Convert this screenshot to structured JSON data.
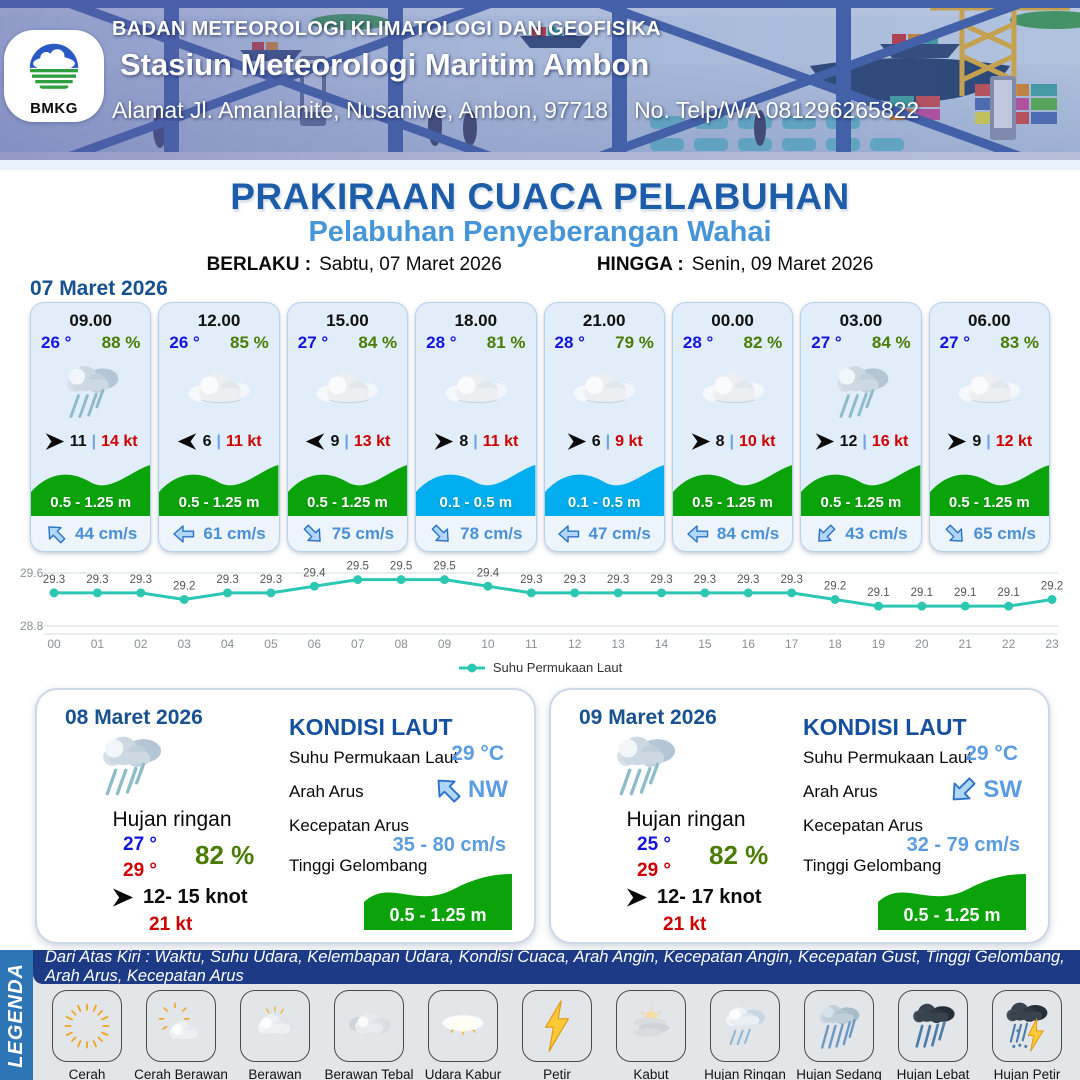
{
  "header": {
    "logo_text": "BMKG",
    "agency": "BADAN METEOROLOGI KLIMATOLOGI DAN GEOFISIKA",
    "station": "Stasiun Meteorologi Maritim Ambon",
    "address": "Alamat Jl. Amanlanite, Nusaniwe, Ambon, 97718",
    "phone": "No. Telp/WA  081296265822"
  },
  "title": "PRAKIRAAN CUACA PELABUHAN",
  "subtitle": "Pelabuhan Penyeberangan Wahai",
  "validity": {
    "berlaku_label": "BERLAKU :",
    "berlaku_value": "Sabtu, 07 Maret 2026",
    "hingga_label": "HINGGA :",
    "hingga_value": "Senin, 09 Maret 2026"
  },
  "forecast_date": "07 Maret 2026",
  "labels": {
    "sep": "|"
  },
  "hourly": [
    {
      "time": "09.00",
      "temp": "26 °",
      "humidity": "88 %",
      "icon": "hujan-ringan",
      "wind_dir": "E",
      "wind": "11",
      "gust": "14 kt",
      "wave": "0.5 - 1.25 m",
      "wave_color": "green",
      "current_dir": "NW",
      "current": "44 cm/s"
    },
    {
      "time": "12.00",
      "temp": "26 °",
      "humidity": "85 %",
      "icon": "berawan",
      "wind_dir": "W",
      "wind": "6",
      "gust": "11 kt",
      "wave": "0.5 - 1.25 m",
      "wave_color": "green",
      "current_dir": "W",
      "current": "61 cm/s"
    },
    {
      "time": "15.00",
      "temp": "27 °",
      "humidity": "84 %",
      "icon": "berawan",
      "wind_dir": "W",
      "wind": "9",
      "gust": "13 kt",
      "wave": "0.5 - 1.25 m",
      "wave_color": "green",
      "current_dir": "SE",
      "current": "75 cm/s"
    },
    {
      "time": "18.00",
      "temp": "28 °",
      "humidity": "81 %",
      "icon": "berawan",
      "wind_dir": "E",
      "wind": "8",
      "gust": "11 kt",
      "wave": "0.1 - 0.5 m",
      "wave_color": "blue",
      "current_dir": "SE",
      "current": "78 cm/s"
    },
    {
      "time": "21.00",
      "temp": "28 °",
      "humidity": "79 %",
      "icon": "berawan",
      "wind_dir": "E",
      "wind": "6",
      "gust": "9 kt",
      "wave": "0.1 - 0.5 m",
      "wave_color": "blue",
      "current_dir": "W",
      "current": "47 cm/s"
    },
    {
      "time": "00.00",
      "temp": "28 °",
      "humidity": "82 %",
      "icon": "berawan",
      "wind_dir": "E",
      "wind": "8",
      "gust": "10 kt",
      "wave": "0.5 - 1.25 m",
      "wave_color": "green",
      "current_dir": "W",
      "current": "84 cm/s"
    },
    {
      "time": "03.00",
      "temp": "27 °",
      "humidity": "84 %",
      "icon": "hujan-ringan",
      "wind_dir": "E",
      "wind": "12",
      "gust": "16 kt",
      "wave": "0.5 - 1.25 m",
      "wave_color": "green",
      "current_dir": "SW",
      "current": "43 cm/s"
    },
    {
      "time": "06.00",
      "temp": "27 °",
      "humidity": "83 %",
      "icon": "berawan",
      "wind_dir": "E",
      "wind": "9",
      "gust": "12 kt",
      "wave": "0.5 - 1.25 m",
      "wave_color": "green",
      "current_dir": "SE",
      "current": "65 cm/s"
    }
  ],
  "chart_data": {
    "type": "line",
    "x": [
      "00",
      "01",
      "02",
      "03",
      "04",
      "05",
      "06",
      "07",
      "08",
      "09",
      "10",
      "11",
      "12",
      "13",
      "14",
      "15",
      "16",
      "17",
      "18",
      "19",
      "20",
      "21",
      "22",
      "23"
    ],
    "values": [
      29.3,
      29.3,
      29.3,
      29.2,
      29.3,
      29.3,
      29.4,
      29.5,
      29.5,
      29.5,
      29.4,
      29.3,
      29.3,
      29.3,
      29.3,
      29.3,
      29.3,
      29.3,
      29.2,
      29.1,
      29.1,
      29.1,
      29.1,
      29.2
    ],
    "legend": "Suhu Permukaan Laut",
    "ylim": [
      28.8,
      29.6
    ],
    "ylabel_top": "29.6",
    "ylabel_bottom": "28.8",
    "line_color": "#2cc7b3",
    "grid": true,
    "legend_position": "bottom"
  },
  "sea_labels": {
    "title": "KONDISI LAUT",
    "sst": "Suhu Permukaan Laut",
    "dir": "Arah Arus",
    "speed": "Kecepatan Arus",
    "wave": "Tinggi Gelombang"
  },
  "daily": [
    {
      "date": "08 Maret 2026",
      "icon": "hujan-ringan",
      "condition": "Hujan ringan",
      "temp_min": "27 °",
      "temp_max": "29 °",
      "humidity": "82 %",
      "wind": "12- 15 knot",
      "gust": "21 kt",
      "sst": "29 °C",
      "current_dir": "NW",
      "current_dir_label": "NW",
      "current": "35 - 80 cm/s",
      "wave": "0.5 - 1.25 m"
    },
    {
      "date": "09 Maret 2026",
      "icon": "hujan-ringan",
      "condition": "Hujan ringan",
      "temp_min": "25 °",
      "temp_max": "29 °",
      "humidity": "82 %",
      "wind": "12- 17 knot",
      "gust": "21 kt",
      "sst": "29 °C",
      "current_dir": "SW",
      "current_dir_label": "SW",
      "current": "32 - 79 cm/s",
      "wave": "0.5 - 1.25 m"
    }
  ],
  "legend": {
    "tab": "LEGENDA",
    "description": "Dari Atas Kiri : Waktu, Suhu Udara, Kelembapan Udara, Kondisi Cuaca, Arah Angin, Kecepatan Angin, Kecepatan Gust, Tinggi Gelombang, Arah Arus, Kecepatan Arus",
    "items": [
      {
        "name": "cerah",
        "label": "Cerah"
      },
      {
        "name": "cerah-berawan",
        "label": "Cerah Berawan"
      },
      {
        "name": "berawan",
        "label": "Berawan"
      },
      {
        "name": "berawan-tebal",
        "label": "Berawan Tebal"
      },
      {
        "name": "udara-kabur",
        "label": "Udara Kabur"
      },
      {
        "name": "petir",
        "label": "Petir"
      },
      {
        "name": "kabut",
        "label": "Kabut"
      },
      {
        "name": "hujan-ringan",
        "label": "Hujan Ringan"
      },
      {
        "name": "hujan-sedang",
        "label": "Hujan Sedang"
      },
      {
        "name": "hujan-lebat",
        "label": "Hujan Lebat"
      },
      {
        "name": "hujan-petir",
        "label": "Hujan Petir"
      }
    ]
  }
}
